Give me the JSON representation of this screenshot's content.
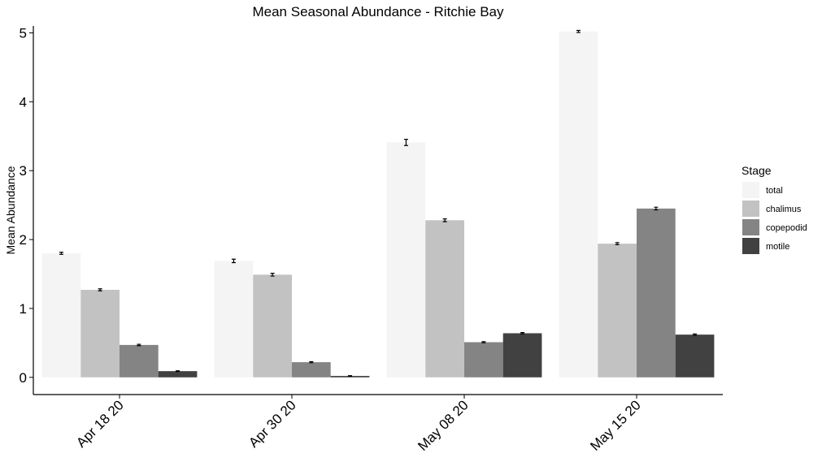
{
  "chart_data": {
    "type": "bar",
    "title": "Mean Seasonal Abundance - Ritchie Bay",
    "xlabel": "",
    "ylabel": "Mean Abundance",
    "ylim": [
      -0.25,
      5.1
    ],
    "yticks": [
      0,
      1,
      2,
      3,
      4,
      5
    ],
    "categories": [
      "Apr 18 20",
      "Apr 30 20",
      "May 08 20",
      "May 15 20"
    ],
    "legend": {
      "title": "Stage",
      "placement": "right"
    },
    "grid": false,
    "error_bars": true,
    "series": [
      {
        "name": "total",
        "color": "#f4f4f4",
        "values": [
          1.8,
          1.69,
          3.41,
          5.02
        ],
        "errors": [
          0.015,
          0.025,
          0.045,
          0.015
        ]
      },
      {
        "name": "chalimus",
        "color": "#c2c2c2",
        "values": [
          1.27,
          1.49,
          2.28,
          1.94
        ],
        "errors": [
          0.015,
          0.02,
          0.02,
          0.015
        ]
      },
      {
        "name": "copepodid",
        "color": "#848484",
        "values": [
          0.47,
          0.22,
          0.51,
          2.45
        ],
        "errors": [
          0.01,
          0.008,
          0.008,
          0.02
        ]
      },
      {
        "name": "motile",
        "color": "#414141",
        "values": [
          0.09,
          0.02,
          0.64,
          0.62
        ],
        "errors": [
          0.005,
          0.004,
          0.01,
          0.01
        ]
      }
    ]
  }
}
